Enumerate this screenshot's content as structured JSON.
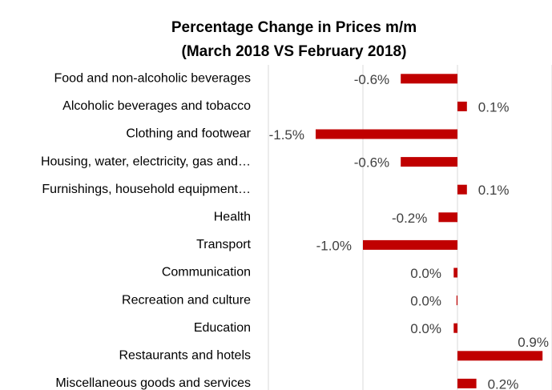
{
  "chart_data": {
    "type": "hbar",
    "title": [
      "Percentage Change in Prices m/m",
      "(March 2018 VS February 2018)"
    ],
    "categories": [
      "Food and non-alcoholic beverages",
      "Alcoholic beverages and tobacco",
      "Clothing and footwear",
      "Housing, water, electricity, gas and…",
      "Furnishings, household equipment…",
      "Health",
      "Transport",
      "Communication",
      "Recreation and culture",
      "Education",
      "Restaurants and hotels ",
      "Miscellaneous goods and services"
    ],
    "values": [
      -0.6,
      0.1,
      -1.5,
      -0.6,
      0.1,
      -0.2,
      -1.0,
      -0.04,
      -0.01,
      -0.04,
      0.9,
      0.2
    ],
    "value_labels": [
      "-0.6%",
      "0.1%",
      "-1.5%",
      "-0.6%",
      "0.1%",
      "-0.2%",
      "-1.0%",
      "0.0%",
      "0.0%",
      "0.0%",
      "0.9%",
      "0.2%"
    ],
    "color": "#c00000",
    "xlim": [
      -2,
      1
    ],
    "xticks": [
      -2,
      -1,
      0,
      1
    ],
    "grid": true,
    "tick_labels": false
  }
}
